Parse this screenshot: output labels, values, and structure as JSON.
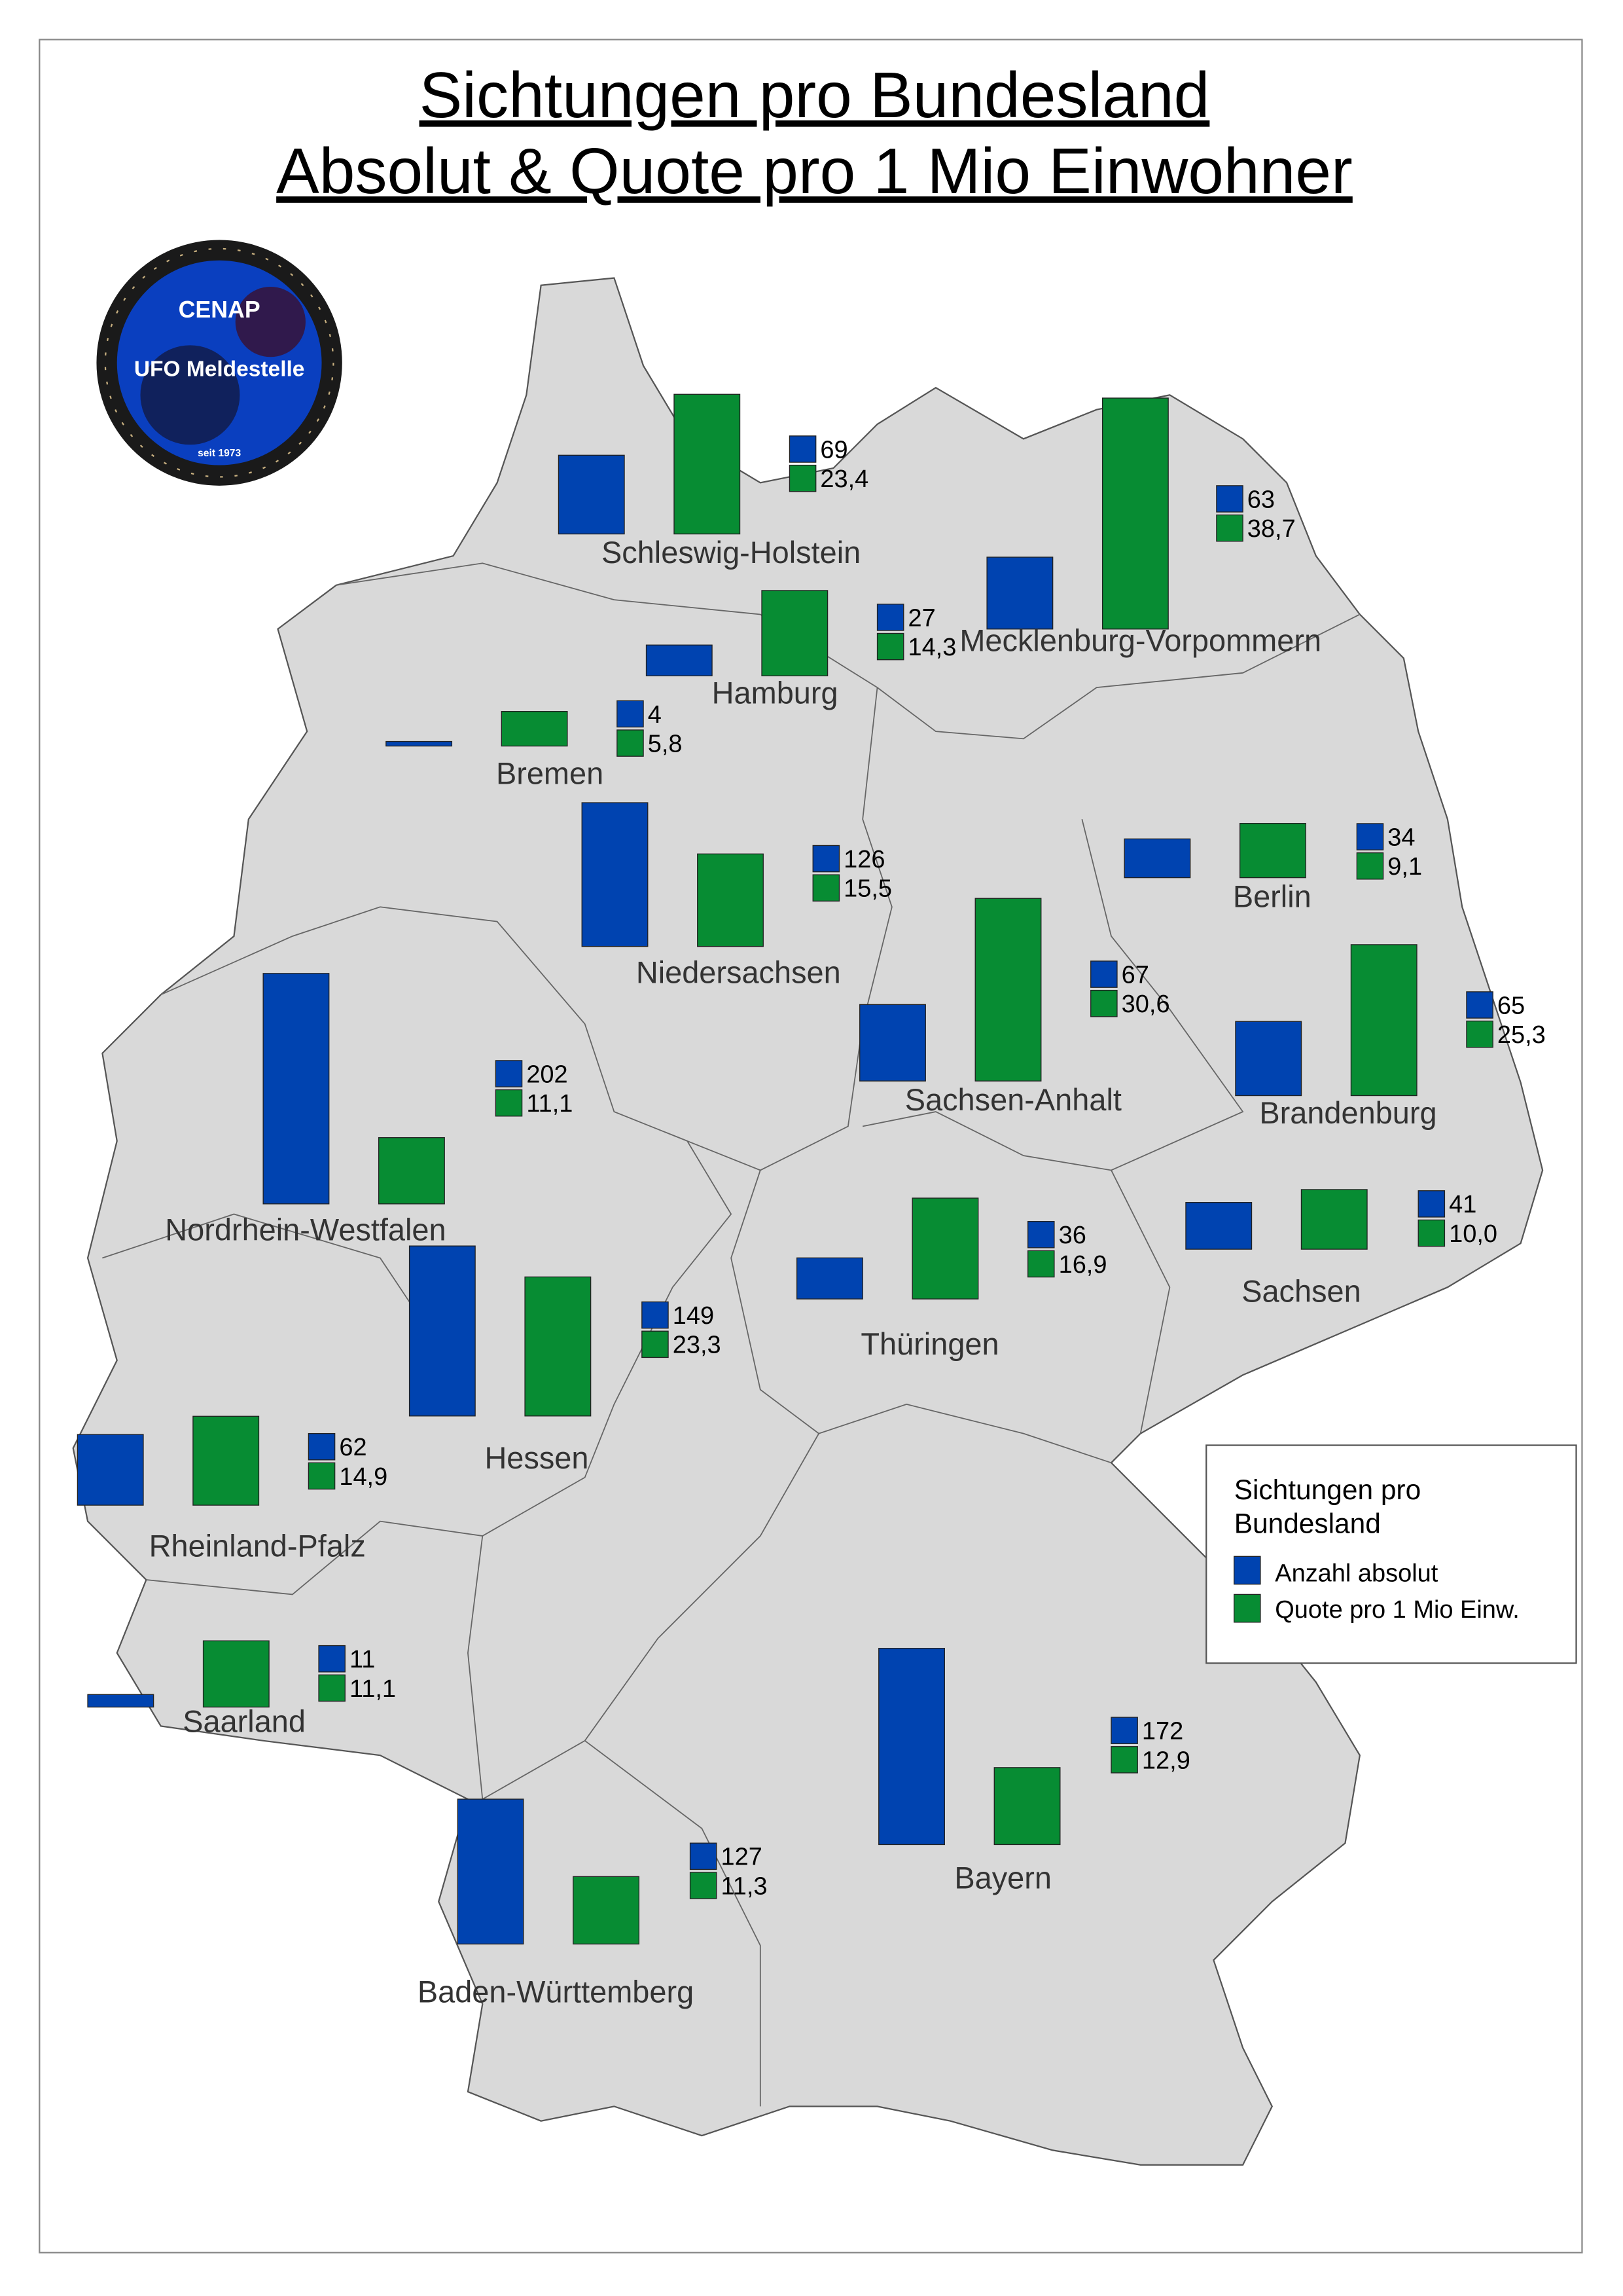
{
  "title": {
    "line1": "Sichtungen pro Bundesland",
    "line2": "Absolut & Quote pro 1 Mio Einwohner"
  },
  "logo": {
    "name": "CENAP",
    "subtitle": "UFO Meldestelle",
    "since": "seit 1973"
  },
  "legend": {
    "title_line1": "Sichtungen pro",
    "title_line2": "Bundesland",
    "items": [
      {
        "label": "Anzahl absolut",
        "color": "#0043B0"
      },
      {
        "label": "Quote pro 1 Mio Einw.",
        "color": "#078C33"
      }
    ]
  },
  "colors": {
    "land": "#D9D9D9",
    "border": "#555555",
    "absolute": "#0043B0",
    "quota": "#078C33"
  },
  "chart_data": {
    "type": "bar",
    "title": "Sichtungen pro Bundesland Absolut & Quote pro 1 Mio Einwohner",
    "series": [
      {
        "name": "Anzahl absolut",
        "color": "#0043B0"
      },
      {
        "name": "Quote pro 1 Mio Einw.",
        "color": "#078C33"
      }
    ],
    "regions": [
      {
        "name": "Schleswig-Holstein",
        "absolut": 69,
        "quote": 23.4
      },
      {
        "name": "Hamburg",
        "absolut": 27,
        "quote": 14.3
      },
      {
        "name": "Mecklenburg-Vorpommern",
        "absolut": 63,
        "quote": 38.7
      },
      {
        "name": "Bremen",
        "absolut": 4,
        "quote": 5.8
      },
      {
        "name": "Niedersachsen",
        "absolut": 126,
        "quote": 15.5
      },
      {
        "name": "Berlin",
        "absolut": 34,
        "quote": 9.1
      },
      {
        "name": "Sachsen-Anhalt",
        "absolut": 67,
        "quote": 30.6
      },
      {
        "name": "Brandenburg",
        "absolut": 65,
        "quote": 25.3
      },
      {
        "name": "Nordrhein-Westfalen",
        "absolut": 202,
        "quote": 11.1
      },
      {
        "name": "Sachsen",
        "absolut": 41,
        "quote": 10.0
      },
      {
        "name": "Thüringen",
        "absolut": 36,
        "quote": 16.9
      },
      {
        "name": "Hessen",
        "absolut": 149,
        "quote": 23.3
      },
      {
        "name": "Rheinland-Pfalz",
        "absolut": 62,
        "quote": 14.9
      },
      {
        "name": "Saarland",
        "absolut": 11,
        "quote": 11.1
      },
      {
        "name": "Bayern",
        "absolut": 172,
        "quote": 12.9
      },
      {
        "name": "Baden-Württemberg",
        "absolut": 127,
        "quote": 11.3
      }
    ],
    "legend_position": "right"
  }
}
